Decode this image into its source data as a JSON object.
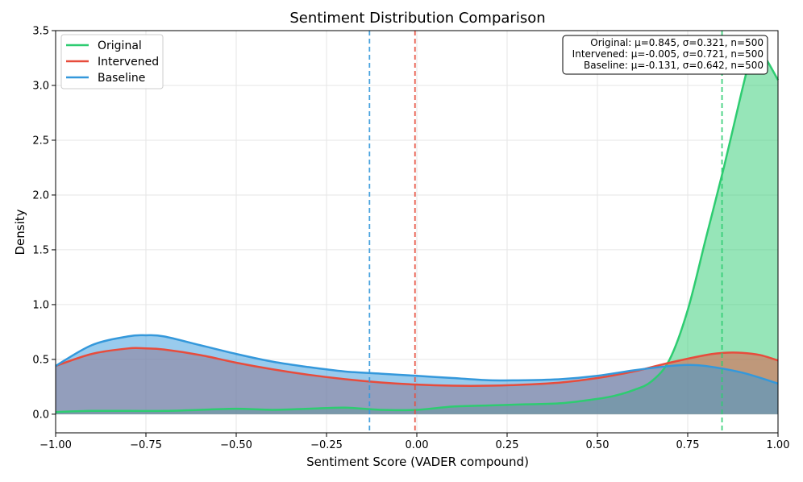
{
  "chart_data": {
    "type": "area",
    "title": "Sentiment Distribution Comparison",
    "xlabel": "Sentiment Score (VADER compound)",
    "ylabel": "Density",
    "xlim": [
      -1.0,
      1.0
    ],
    "ylim": [
      -0.17,
      3.5
    ],
    "grid": true,
    "legend_position": "top-left",
    "x_ticks": [
      -1.0,
      -0.75,
      -0.5,
      -0.25,
      0.0,
      0.25,
      0.5,
      0.75,
      1.0
    ],
    "x_tick_labels": [
      "−1.00",
      "−0.75",
      "−0.50",
      "−0.25",
      "0.00",
      "0.25",
      "0.50",
      "0.75",
      "1.00"
    ],
    "y_ticks": [
      0.0,
      0.5,
      1.0,
      1.5,
      2.0,
      2.5,
      3.0,
      3.5
    ],
    "y_tick_labels": [
      "0.0",
      "0.5",
      "1.0",
      "1.5",
      "2.0",
      "2.5",
      "3.0",
      "3.5"
    ],
    "stats_lines": [
      "Original: μ=0.845, σ=0.321, n=500",
      "Intervened: μ=-0.005, σ=0.721, n=500",
      "Baseline: μ=-0.131, σ=0.642, n=500"
    ],
    "series": [
      {
        "name": "Original",
        "color": "#2ecc71",
        "mean": 0.845,
        "x": [
          -1.0,
          -0.9,
          -0.8,
          -0.7,
          -0.6,
          -0.5,
          -0.4,
          -0.3,
          -0.2,
          -0.1,
          0.0,
          0.1,
          0.2,
          0.3,
          0.4,
          0.5,
          0.55,
          0.6,
          0.65,
          0.7,
          0.75,
          0.8,
          0.85,
          0.9,
          0.925,
          0.95,
          1.0
        ],
        "y": [
          0.02,
          0.03,
          0.03,
          0.03,
          0.04,
          0.05,
          0.04,
          0.05,
          0.06,
          0.04,
          0.04,
          0.07,
          0.08,
          0.09,
          0.1,
          0.14,
          0.17,
          0.22,
          0.3,
          0.5,
          0.95,
          1.6,
          2.25,
          2.95,
          3.25,
          3.32,
          3.05
        ]
      },
      {
        "name": "Intervened",
        "color": "#e74c3c",
        "mean": -0.005,
        "x": [
          -1.0,
          -0.9,
          -0.8,
          -0.75,
          -0.7,
          -0.6,
          -0.5,
          -0.4,
          -0.3,
          -0.2,
          -0.1,
          0.0,
          0.1,
          0.2,
          0.3,
          0.4,
          0.5,
          0.6,
          0.7,
          0.8,
          0.85,
          0.9,
          0.95,
          1.0
        ],
        "y": [
          0.44,
          0.55,
          0.6,
          0.6,
          0.59,
          0.54,
          0.47,
          0.41,
          0.36,
          0.32,
          0.29,
          0.27,
          0.26,
          0.26,
          0.27,
          0.29,
          0.33,
          0.39,
          0.47,
          0.54,
          0.56,
          0.56,
          0.54,
          0.49
        ]
      },
      {
        "name": "Baseline",
        "color": "#3498db",
        "mean": -0.131,
        "x": [
          -1.0,
          -0.9,
          -0.8,
          -0.75,
          -0.7,
          -0.6,
          -0.5,
          -0.4,
          -0.3,
          -0.2,
          -0.1,
          0.0,
          0.1,
          0.2,
          0.3,
          0.4,
          0.5,
          0.6,
          0.7,
          0.75,
          0.8,
          0.9,
          1.0
        ],
        "y": [
          0.44,
          0.63,
          0.71,
          0.72,
          0.71,
          0.63,
          0.55,
          0.48,
          0.43,
          0.39,
          0.37,
          0.35,
          0.33,
          0.31,
          0.31,
          0.32,
          0.35,
          0.4,
          0.44,
          0.45,
          0.44,
          0.38,
          0.28
        ]
      }
    ]
  }
}
